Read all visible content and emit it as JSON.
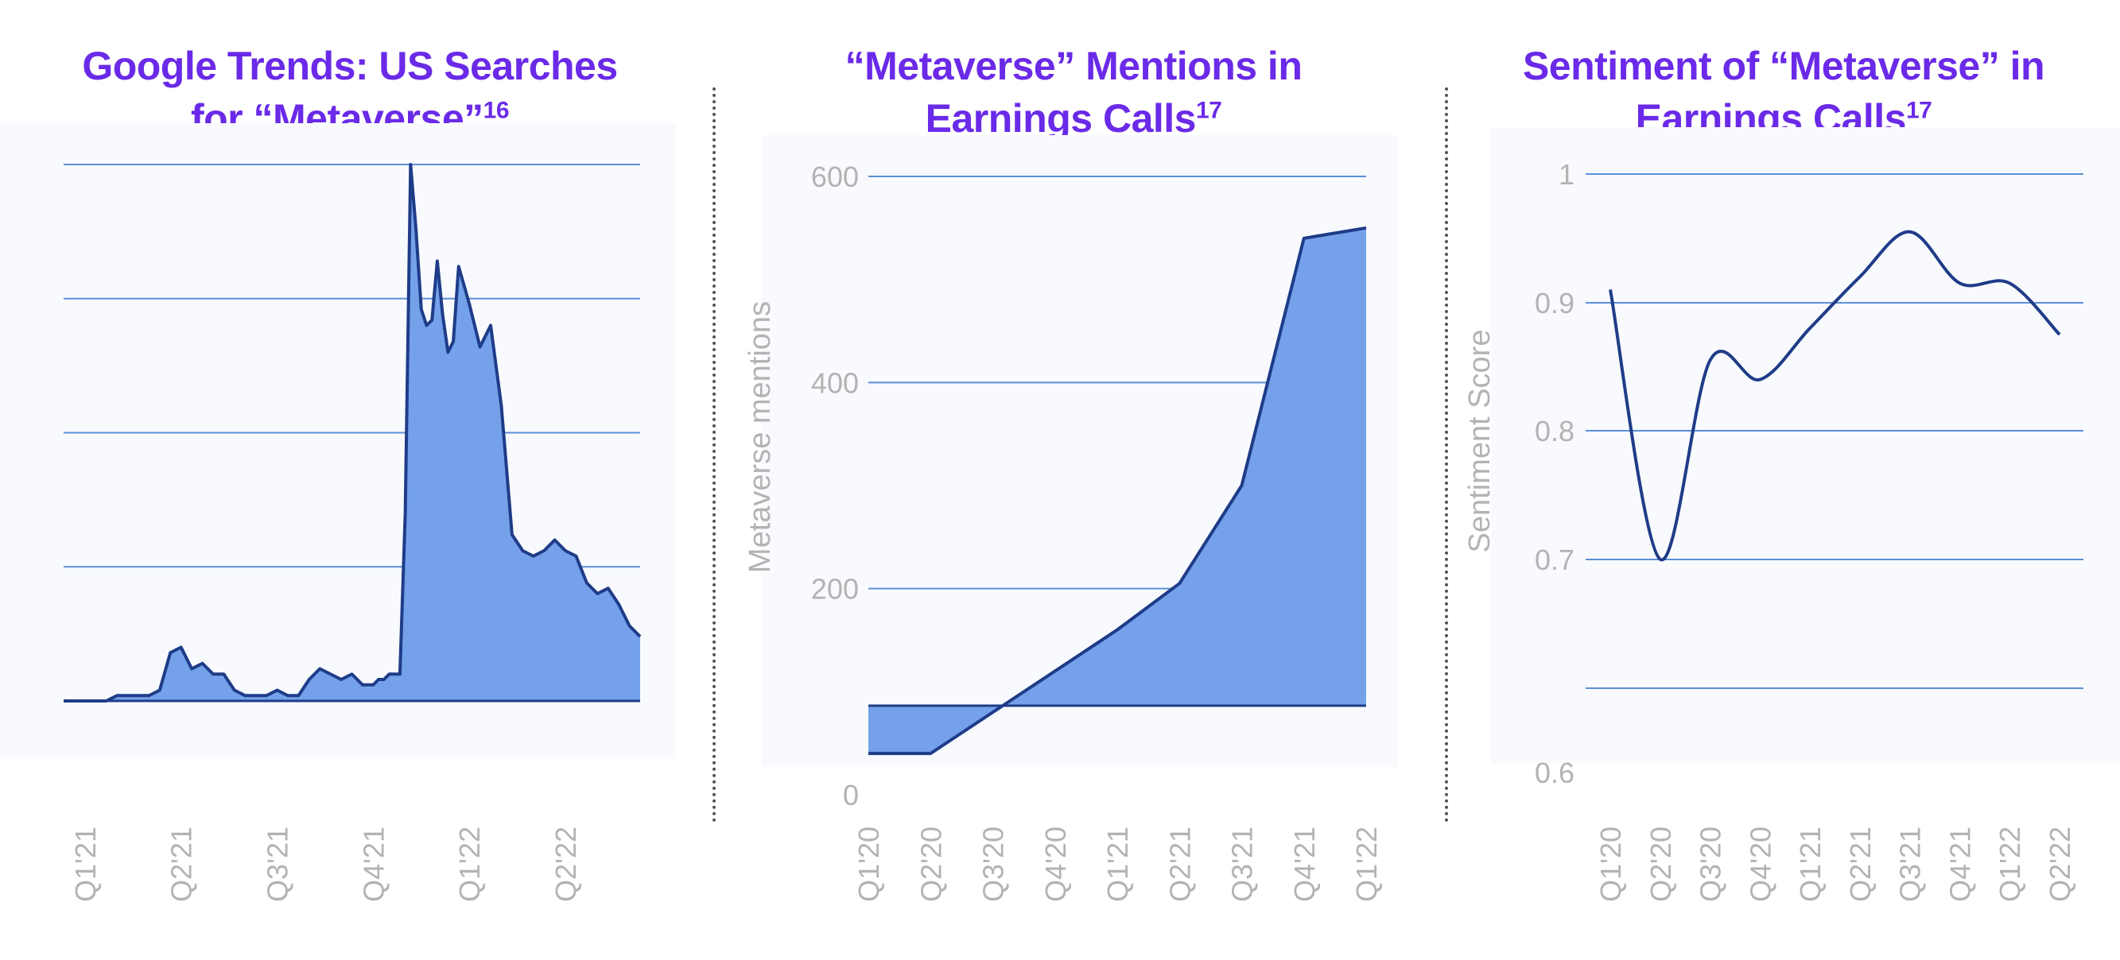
{
  "chart_data": [
    {
      "type": "area",
      "title": "Google Trends: US Searches for “Metaverse”",
      "title_lines": [
        "Google Trends: US Searches",
        "for “Metaverse”"
      ],
      "footnote": "16",
      "xlabel": "",
      "ylabel": "",
      "ylim": [
        0,
        100
      ],
      "gridlines": [
        25,
        50,
        75,
        100
      ],
      "tick_labels": [
        "Q1'21",
        "Q2'21",
        "Q3'21",
        "Q4'21",
        "Q1'22",
        "Q2'22"
      ],
      "tick_positions": [
        2,
        11,
        20,
        29,
        38,
        47
      ],
      "x": [
        0,
        1,
        2,
        3,
        4,
        5,
        6,
        7,
        8,
        9,
        10,
        11,
        12,
        13,
        14,
        15,
        16,
        17,
        18,
        19,
        20,
        21,
        22,
        23,
        24,
        25,
        26,
        27,
        27.5,
        28,
        28.5,
        29,
        29.5,
        30,
        30.5,
        31,
        31.5,
        32,
        32.5,
        33,
        33.5,
        34,
        34.5,
        35,
        35.5,
        36,
        36.5,
        37,
        38,
        39,
        40,
        41,
        42,
        43,
        44,
        45,
        46,
        47,
        48,
        49,
        50,
        51,
        52,
        53,
        54
      ],
      "values": [
        0,
        0,
        0,
        0,
        0,
        1,
        1,
        1,
        1,
        2,
        9,
        10,
        6,
        7,
        5,
        5,
        2,
        1,
        1,
        1,
        2,
        1,
        1,
        4,
        6,
        5,
        4,
        5,
        4,
        3,
        3,
        3,
        4,
        4,
        5,
        5,
        5,
        35,
        100,
        88,
        73,
        70,
        71,
        82,
        72,
        65,
        67,
        81,
        74,
        66,
        70,
        55,
        31,
        28,
        27,
        28,
        30,
        28,
        27,
        22,
        20,
        21,
        18,
        14,
        12
      ],
      "series_color": "#1f3c88",
      "fill_color": "#74a1ea"
    },
    {
      "type": "area",
      "title": "“Metaverse” Mentions in Earnings Calls",
      "title_lines": [
        "“Metaverse” Mentions in",
        "Earnings Calls"
      ],
      "footnote": "17",
      "xlabel": "",
      "ylabel": "Metaverse mentions",
      "yticks": [
        0,
        200,
        400,
        600
      ],
      "gridlines": [
        200,
        400,
        600
      ],
      "categories": [
        "Q1'20",
        "Q2'20",
        "Q3'20",
        "Q4'20",
        "Q1'21",
        "Q2'21",
        "Q3'21",
        "Q4'21",
        "Q1'22"
      ],
      "values": [
        40,
        40,
        80,
        120,
        160,
        205,
        300,
        540,
        550
      ],
      "series_color": "#1f3c88",
      "fill_color": "#74a1ea"
    },
    {
      "type": "line",
      "title": "Sentiment of “Metaverse” in Earnings Calls",
      "title_lines": [
        "Sentiment of “Metaverse” in",
        "Earnings Calls"
      ],
      "footnote": "17",
      "xlabel": "",
      "ylabel": "Sentiment Score",
      "yticks": [
        0.6,
        0.7,
        0.8,
        0.9,
        1.0
      ],
      "gridlines": [
        0.6,
        0.7,
        0.8,
        0.9,
        1.0
      ],
      "categories": [
        "Q1'20",
        "Q2'20",
        "Q3'20",
        "Q4'20",
        "Q1'21",
        "Q2'21",
        "Q3'21",
        "Q4'21",
        "Q1'22",
        "Q2'22"
      ],
      "values": [
        0.91,
        0.7,
        0.855,
        0.84,
        0.88,
        0.92,
        0.955,
        0.915,
        0.915,
        0.875
      ],
      "series_color": "#1f3c88"
    }
  ]
}
